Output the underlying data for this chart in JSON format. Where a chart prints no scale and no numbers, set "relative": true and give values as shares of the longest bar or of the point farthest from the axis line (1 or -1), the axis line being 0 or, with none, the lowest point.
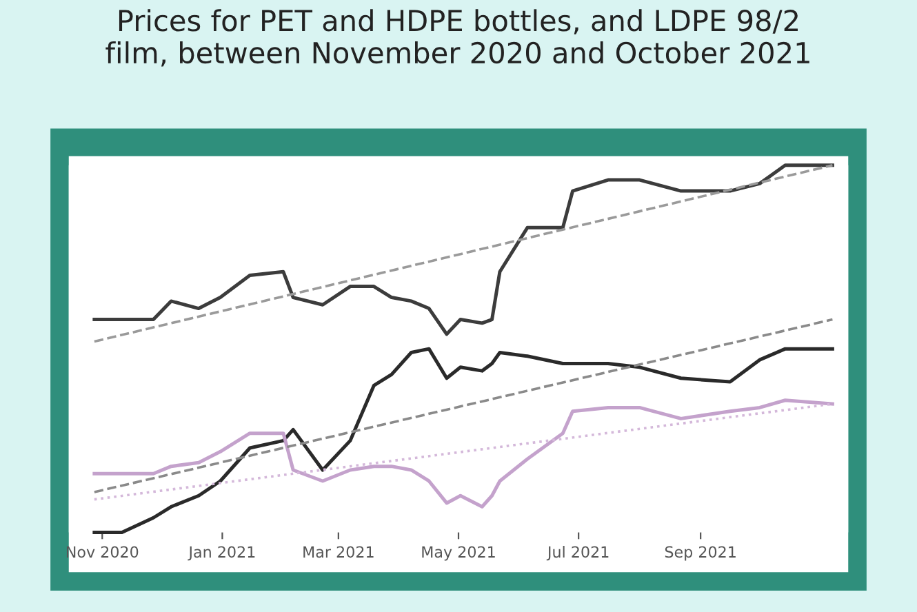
{
  "chart_data": {
    "type": "line",
    "title": "Prices for PET and HDPE bottles, and LDPE 98/2\nfilm, between November 2020 and October 2021",
    "relative": true,
    "tick_labels": "x",
    "marker": "none",
    "line_style": "solid",
    "grid": false,
    "x": [
      "2020-10-28",
      "2020-11-11",
      "2020-11-27",
      "2020-12-06",
      "2020-12-20",
      "2020-12-31",
      "2021-01-15",
      "2021-02-01",
      "2021-02-06",
      "2021-02-21",
      "2021-03-07",
      "2021-03-19",
      "2021-03-28",
      "2021-04-07",
      "2021-04-16",
      "2021-04-25",
      "2021-05-02",
      "2021-05-13",
      "2021-05-18",
      "2021-05-22",
      "2021-06-05",
      "2021-06-23",
      "2021-06-28",
      "2021-07-16",
      "2021-08-01",
      "2021-08-22",
      "2021-09-16",
      "2021-10-01",
      "2021-10-14",
      "2021-11-07"
    ],
    "xlim": [
      "2020-10-15",
      "2021-11-15"
    ],
    "xticks": [
      {
        "value": "2020-11-01",
        "label": "Nov 2020"
      },
      {
        "value": "2021-01-01",
        "label": "Jan 2021"
      },
      {
        "value": "2021-03-01",
        "label": "Mar 2021"
      },
      {
        "value": "2021-05-01",
        "label": "May 2021"
      },
      {
        "value": "2021-07-01",
        "label": "Jul 2021"
      },
      {
        "value": "2021-09-01",
        "label": "Sep 2021"
      }
    ],
    "series": [
      {
        "color": "#3c3c3c",
        "values": [
          0.58,
          0.58,
          0.58,
          0.63,
          0.61,
          0.64,
          0.7,
          0.71,
          0.64,
          0.62,
          0.67,
          0.67,
          0.64,
          0.63,
          0.61,
          0.54,
          0.58,
          0.57,
          0.58,
          0.71,
          0.83,
          0.83,
          0.93,
          0.96,
          0.96,
          0.93,
          0.93,
          0.95,
          1.0,
          1.0
        ]
      },
      {
        "color": "#2a2a2a",
        "values": [
          0,
          0,
          0.04,
          0.07,
          0.1,
          0.14,
          0.23,
          0.25,
          0.28,
          0.17,
          0.25,
          0.4,
          0.43,
          0.49,
          0.5,
          0.42,
          0.45,
          0.44,
          0.46,
          0.49,
          0.48,
          0.46,
          0.46,
          0.46,
          0.45,
          0.42,
          0.41,
          0.47,
          0.5,
          0.5
        ]
      },
      {
        "color": "#c4a2cc",
        "values": [
          0.16,
          0.16,
          0.16,
          0.18,
          0.19,
          0.22,
          0.27,
          0.27,
          0.17,
          0.14,
          0.17,
          0.18,
          0.18,
          0.17,
          0.14,
          0.08,
          0.1,
          0.07,
          0.1,
          0.14,
          0.2,
          0.27,
          0.33,
          0.34,
          0.34,
          0.31,
          0.33,
          0.34,
          0.36,
          0.35
        ]
      },
      {
        "type": "line",
        "line_style": "dashed",
        "color": "#9a9a9a",
        "x": [
          "2020-10-28",
          "2021-11-07"
        ],
        "values": [
          0.52,
          1.0
        ]
      },
      {
        "type": "line",
        "line_style": "dashed",
        "color": "#8a8a8a",
        "x": [
          "2020-10-28",
          "2021-11-07"
        ],
        "values": [
          0.11,
          0.58
        ]
      },
      {
        "type": "line",
        "line_style": "dotted",
        "color": "#d4b8da",
        "x": [
          "2020-10-28",
          "2021-11-07"
        ],
        "values": [
          0.09,
          0.35
        ]
      }
    ]
  }
}
